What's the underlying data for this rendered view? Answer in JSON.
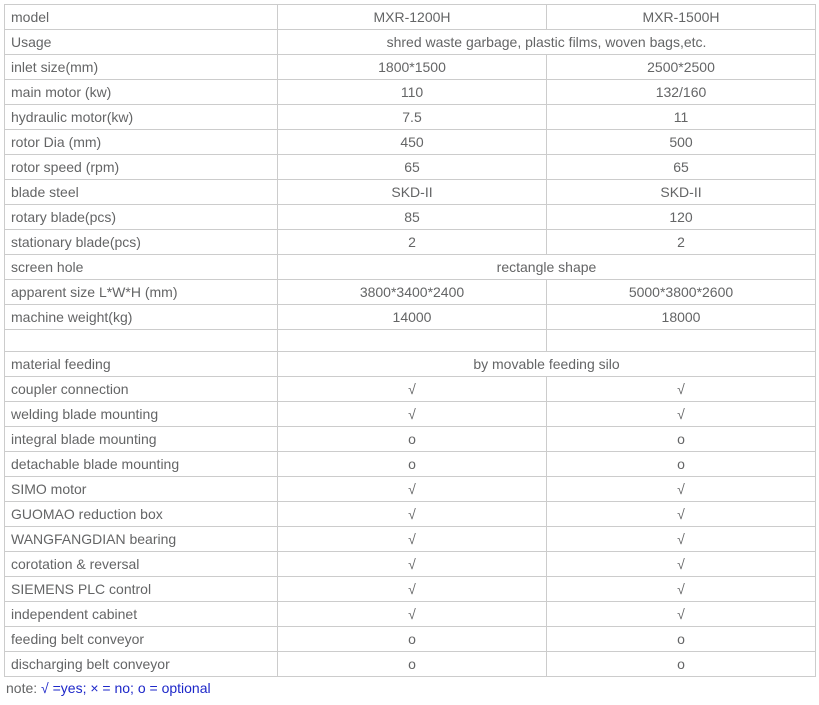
{
  "table": {
    "col1_width": 273,
    "col2_width": 269,
    "col3_width": 269,
    "border_color": "#cccccc",
    "text_color": "#646566",
    "rows": [
      {
        "label": "model",
        "type": "split",
        "v1": "MXR-1200H",
        "v2": "MXR-1500H"
      },
      {
        "label": "Usage",
        "type": "merged",
        "v": "shred waste garbage, plastic films, woven bags,etc."
      },
      {
        "label": "inlet size(mm)",
        "type": "split",
        "v1": "1800*1500",
        "v2": "2500*2500"
      },
      {
        "label": "main motor (kw)",
        "type": "split",
        "v1": "110",
        "v2": "132/160"
      },
      {
        "label": "hydraulic motor(kw)",
        "type": "split",
        "v1": "7.5",
        "v2": "11"
      },
      {
        "label": "rotor Dia (mm)",
        "type": "split",
        "v1": "450",
        "v2": "500"
      },
      {
        "label": "rotor speed (rpm)",
        "type": "split",
        "v1": "65",
        "v2": "65"
      },
      {
        "label": "blade steel",
        "type": "split",
        "v1": "SKD-II",
        "v2": "SKD-II"
      },
      {
        "label": "rotary blade(pcs)",
        "type": "split",
        "v1": "85",
        "v2": "120"
      },
      {
        "label": "stationary blade(pcs)",
        "type": "split",
        "v1": "2",
        "v2": "2"
      },
      {
        "label": "screen hole",
        "type": "merged",
        "v": "rectangle shape"
      },
      {
        "label": "apparent size L*W*H (mm)",
        "type": "split",
        "v1": "3800*3400*2400",
        "v2": "5000*3800*2600"
      },
      {
        "label": "machine weight(kg)",
        "type": "split",
        "v1": "14000",
        "v2": "18000"
      },
      {
        "label": "",
        "type": "blank"
      },
      {
        "label": "material feeding",
        "type": "merged",
        "v": "by movable feeding silo"
      },
      {
        "label": "coupler connection",
        "type": "split",
        "v1": "√",
        "v2": "√"
      },
      {
        "label": "welding blade mounting",
        "type": "split",
        "v1": "√",
        "v2": "√"
      },
      {
        "label": "integral blade mounting",
        "type": "split",
        "v1": "o",
        "v2": "o"
      },
      {
        "label": "detachable blade mounting",
        "type": "split",
        "v1": "o",
        "v2": "o"
      },
      {
        "label": "SIMO motor",
        "type": "split",
        "v1": "√",
        "v2": "√"
      },
      {
        "label": "GUOMAO reduction box",
        "type": "split",
        "v1": "√",
        "v2": "√"
      },
      {
        "label": "WANGFANGDIAN bearing",
        "type": "split",
        "v1": "√",
        "v2": "√"
      },
      {
        "label": "corotation & reversal",
        "type": "split",
        "v1": "√",
        "v2": "√"
      },
      {
        "label": "SIEMENS PLC control",
        "type": "split",
        "v1": "√",
        "v2": "√"
      },
      {
        "label": "independent cabinet",
        "type": "split",
        "v1": "√",
        "v2": "√"
      },
      {
        "label": "feeding belt conveyor",
        "type": "split",
        "v1": "o",
        "v2": "o"
      },
      {
        "label": "discharging belt conveyor",
        "type": "split",
        "v1": "o",
        "v2": "o"
      }
    ]
  },
  "note": {
    "prefix": "note: ",
    "legend": "√ =yes; × = no; o = optional",
    "prefix_color": "#646566",
    "legend_color": "#1d27c9"
  }
}
